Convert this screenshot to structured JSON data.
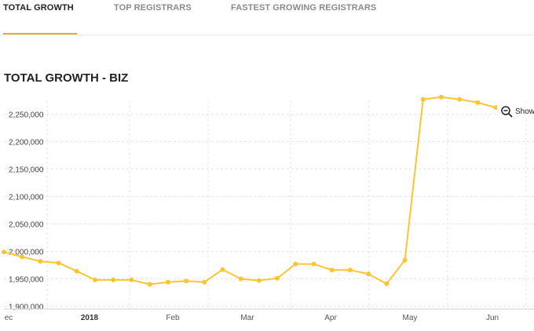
{
  "tabs": [
    {
      "label": "TOTAL GROWTH",
      "active": true
    },
    {
      "label": "TOP REGISTRARS",
      "active": false
    },
    {
      "label": "FASTEST GROWING REGISTRARS",
      "active": false
    }
  ],
  "section": {
    "title": "TOTAL GROWTH - BIZ"
  },
  "colors": {
    "accent": "#f3a931",
    "line": "#fbc531",
    "grid": "#e5e5e5"
  },
  "chart_data": {
    "type": "line",
    "title": "TOTAL GROWTH - BIZ",
    "xlabel": "",
    "ylabel": "",
    "grid": true,
    "ylim": [
      1895000,
      2275000
    ],
    "y_tick_labels": [
      "1,900,000",
      "1,950,000",
      "2,000,000",
      "2,050,000",
      "2,100,000",
      "2,150,000",
      "2,200,000",
      "2,250,000"
    ],
    "y_tick_values": [
      1900000,
      1950000,
      2000000,
      2050000,
      2100000,
      2150000,
      2200000,
      2250000
    ],
    "x_tick_labels": [
      {
        "text": "ec",
        "bold": false
      },
      {
        "text": "2018",
        "bold": true
      },
      {
        "text": "Feb",
        "bold": false
      },
      {
        "text": "Mar",
        "bold": false
      },
      {
        "text": "Apr",
        "bold": false
      },
      {
        "text": "May",
        "bold": false
      },
      {
        "text": "Jun",
        "bold": false
      }
    ],
    "zoom_control": {
      "icon": "zoom-out-icon",
      "label": "Show"
    },
    "series": [
      {
        "values": [
          1999000,
          1990000,
          1982000,
          1979000,
          1964000,
          1948000,
          1948000,
          1948000,
          1940000,
          1944000,
          1946000,
          1944000,
          1967000,
          1950000,
          1947000,
          1951000,
          1977000,
          1977000,
          1966000,
          1966000,
          1959000,
          1941000,
          1984000,
          2277000,
          2281000,
          2277000,
          2271000,
          2262000,
          2262000,
          2254000
        ]
      }
    ]
  }
}
